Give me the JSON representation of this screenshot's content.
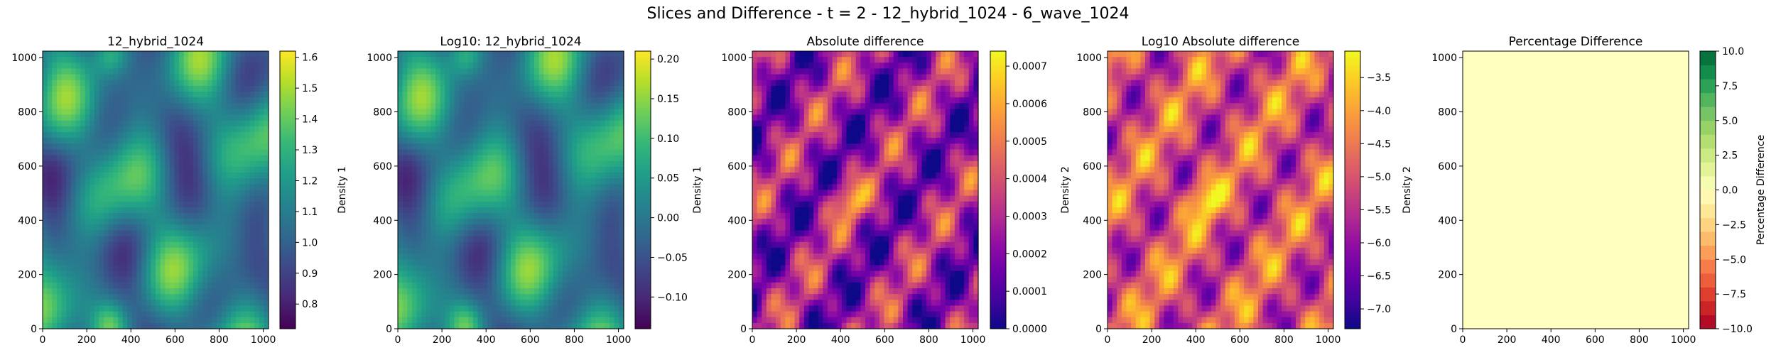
{
  "figure": {
    "suptitle": "Slices and Difference - t = 2 - 12_hybrid_1024 - 6_wave_1024"
  },
  "chart_data": [
    {
      "type": "heatmap",
      "title": "12_hybrid_1024",
      "colormap": "viridis",
      "x_ticks": [
        "0",
        "200",
        "400",
        "600",
        "800",
        "1000"
      ],
      "y_ticks": [
        "0",
        "200",
        "400",
        "600",
        "800",
        "1000"
      ],
      "xlim": [
        0,
        1024
      ],
      "ylim": [
        0,
        1024
      ],
      "colorbar": {
        "label": "Density 1",
        "range": [
          0.72,
          1.62
        ],
        "ticks": [
          0.8,
          0.9,
          1.0,
          1.1,
          1.2,
          1.3,
          1.4,
          1.5,
          1.6
        ],
        "tick_labels": [
          "0.8",
          "0.9",
          "1.0",
          "1.1",
          "1.2",
          "1.3",
          "1.4",
          "1.5",
          "1.6"
        ]
      }
    },
    {
      "type": "heatmap",
      "title": "Log10: 12_hybrid_1024",
      "colormap": "viridis",
      "x_ticks": [
        "0",
        "200",
        "400",
        "600",
        "800",
        "1000"
      ],
      "y_ticks": [
        "0",
        "200",
        "400",
        "600",
        "800",
        "1000"
      ],
      "xlim": [
        0,
        1024
      ],
      "ylim": [
        0,
        1024
      ],
      "colorbar": {
        "label": "Density 1",
        "range": [
          -0.14,
          0.21
        ],
        "ticks": [
          -0.1,
          -0.05,
          0.0,
          0.05,
          0.1,
          0.15,
          0.2
        ],
        "tick_labels": [
          "−0.10",
          "−0.05",
          "0.00",
          "0.05",
          "0.10",
          "0.15",
          "0.20"
        ]
      }
    },
    {
      "type": "heatmap",
      "title": "Absolute difference",
      "colormap": "plasma",
      "x_ticks": [
        "0",
        "200",
        "400",
        "600",
        "800",
        "1000"
      ],
      "y_ticks": [
        "0",
        "200",
        "400",
        "600",
        "800",
        "1000"
      ],
      "xlim": [
        0,
        1024
      ],
      "ylim": [
        0,
        1024
      ],
      "colorbar": {
        "label": "Density 2",
        "range": [
          0,
          0.00074
        ],
        "ticks": [
          0,
          0.0001,
          0.0002,
          0.0003,
          0.0004,
          0.0005,
          0.0006,
          0.0007
        ],
        "tick_labels": [
          "0.0000",
          "0.0001",
          "0.0002",
          "0.0003",
          "0.0004",
          "0.0005",
          "0.0006",
          "0.0007"
        ]
      }
    },
    {
      "type": "heatmap",
      "title": "Log10 Absolute difference",
      "colormap": "plasma",
      "x_ticks": [
        "0",
        "200",
        "400",
        "600",
        "800",
        "1000"
      ],
      "y_ticks": [
        "0",
        "200",
        "400",
        "600",
        "800",
        "1000"
      ],
      "xlim": [
        0,
        1024
      ],
      "ylim": [
        0,
        1024
      ],
      "colorbar": {
        "label": "Density 2",
        "range": [
          -7.3,
          -3.1
        ],
        "ticks": [
          -7.0,
          -6.5,
          -6.0,
          -5.5,
          -5.0,
          -4.5,
          -4.0,
          -3.5
        ],
        "tick_labels": [
          "−7.0",
          "−6.5",
          "−6.0",
          "−5.5",
          "−5.0",
          "−4.5",
          "−4.0",
          "−3.5"
        ]
      }
    },
    {
      "type": "heatmap",
      "title": "Percentage Difference",
      "colormap": "RdYlGn",
      "uniform_value": 0,
      "fill_color": "#ffffbf",
      "x_ticks": [
        "0",
        "200",
        "400",
        "600",
        "800",
        "1000"
      ],
      "y_ticks": [
        "0",
        "200",
        "400",
        "600",
        "800",
        "1000"
      ],
      "xlim": [
        0,
        1024
      ],
      "ylim": [
        0,
        1024
      ],
      "colorbar": {
        "label": "Percentage Difference",
        "range": [
          -10,
          10
        ],
        "discrete_levels": 20,
        "ticks": [
          -10,
          -7.5,
          -5,
          -2.5,
          0,
          2.5,
          5,
          7.5,
          10
        ],
        "tick_labels": [
          "−10.0",
          "−7.5",
          "−5.0",
          "−2.5",
          "0.0",
          "2.5",
          "5.0",
          "7.5",
          "10.0"
        ]
      }
    }
  ]
}
